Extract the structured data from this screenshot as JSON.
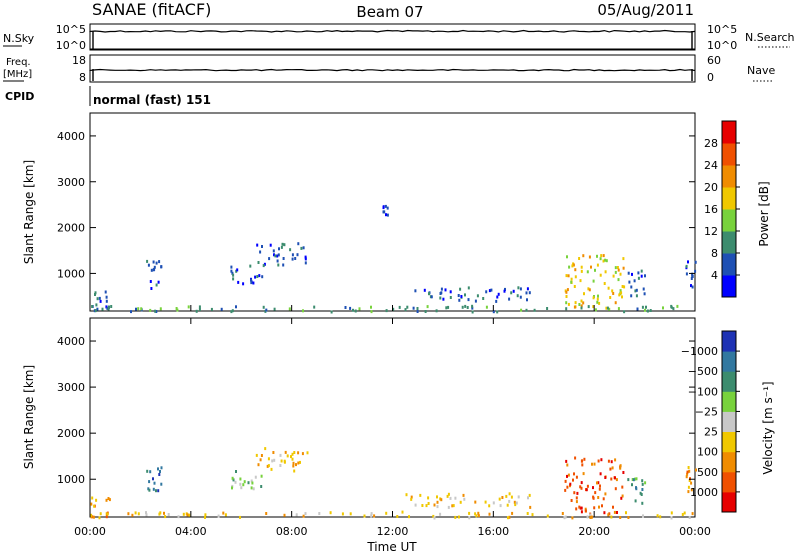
{
  "header": {
    "station": "SANAE (fitACF)",
    "beam": "Beam 07",
    "date": "05/Aug/2011"
  },
  "noise_panel": {
    "left_label": "N.Sky",
    "right_label": "N.Search",
    "left_ticks": [
      "10^5",
      "10^0"
    ],
    "right_ticks": [
      "10^5",
      "10^0"
    ]
  },
  "freq_panel": {
    "left_label_1": "Freq.",
    "left_label_2": "[MHz]",
    "right_label": "Nave",
    "left_ticks": [
      "18",
      "8"
    ],
    "right_ticks": [
      "60",
      "0"
    ]
  },
  "cpid": {
    "label": "CPID",
    "value": "normal (fast) 151"
  },
  "chart_data": [
    {
      "type": "heatmap",
      "panel": "power",
      "ylabel": "Slant Range [km]",
      "colorbar_label": "Power [dB]",
      "colorbar_ticks": [
        "4",
        "8",
        "12",
        "16",
        "20",
        "24",
        "28"
      ],
      "colors": [
        "#0000ff",
        "#1e50b4",
        "#3c8c6e",
        "#78d23c",
        "#f0c800",
        "#f08c00",
        "#f05000",
        "#e60000"
      ],
      "y_ticks": [
        "1000",
        "2000",
        "3000",
        "4000"
      ],
      "ylim_km": [
        180,
        4500
      ],
      "xlim_hours": [
        0,
        24
      ],
      "scatter_regions": [
        {
          "t0": 0.0,
          "t1": 0.8,
          "r0": 200,
          "r1": 650,
          "value_level": 1
        },
        {
          "t0": 2.2,
          "t1": 2.8,
          "r0": 700,
          "r1": 1300,
          "value_level": 1
        },
        {
          "t0": 5.5,
          "t1": 6.8,
          "r0": 800,
          "r1": 1200,
          "value_level": 1
        },
        {
          "t0": 6.5,
          "t1": 8.6,
          "r0": 1200,
          "r1": 1700,
          "value_level": 1
        },
        {
          "t0": 11.6,
          "t1": 11.9,
          "r0": 2300,
          "r1": 2500,
          "value_level": 1
        },
        {
          "t0": 12.5,
          "t1": 17.5,
          "r0": 420,
          "r1": 720,
          "value_level": 1
        },
        {
          "t0": 18.8,
          "t1": 21.2,
          "r0": 250,
          "r1": 1500,
          "value_level": 4
        },
        {
          "t0": 21.3,
          "t1": 22.0,
          "r0": 500,
          "r1": 1100,
          "value_level": 1
        },
        {
          "t0": 23.6,
          "t1": 24.0,
          "r0": 700,
          "r1": 1300,
          "value_level": 1
        },
        {
          "t0": 0.0,
          "t1": 24.0,
          "r0": 190,
          "r1": 320,
          "value_level": 2
        }
      ]
    },
    {
      "type": "heatmap",
      "panel": "velocity",
      "ylabel": "Slant Range [km]",
      "colorbar_label": "Velocity [m s⁻¹]",
      "colorbar_ticks": [
        "1000",
        "500",
        "100",
        "25",
        "−25",
        "−100",
        "−500",
        "−1000"
      ],
      "colors": [
        "#1e32b4",
        "#3278a0",
        "#3c8c6e",
        "#78d23c",
        "#c8c8c8",
        "#f0c800",
        "#f08c00",
        "#f05000",
        "#e60000"
      ],
      "y_ticks": [
        "1000",
        "2000",
        "3000",
        "4000"
      ],
      "ylim_km": [
        180,
        4500
      ],
      "xlim_hours": [
        0,
        24
      ],
      "scatter_regions": [
        {
          "t0": 0.0,
          "t1": 0.8,
          "r0": 200,
          "r1": 650,
          "value_level": 6
        },
        {
          "t0": 2.2,
          "t1": 2.8,
          "r0": 700,
          "r1": 1300,
          "value_level": 1
        },
        {
          "t0": 5.5,
          "t1": 6.8,
          "r0": 800,
          "r1": 1200,
          "value_level": 3
        },
        {
          "t0": 6.5,
          "t1": 8.6,
          "r0": 1200,
          "r1": 1700,
          "value_level": 5
        },
        {
          "t0": 12.5,
          "t1": 17.5,
          "r0": 420,
          "r1": 720,
          "value_level": 5
        },
        {
          "t0": 18.8,
          "t1": 21.2,
          "r0": 250,
          "r1": 1500,
          "value_level": 7
        },
        {
          "t0": 21.3,
          "t1": 22.0,
          "r0": 500,
          "r1": 1100,
          "value_level": 2
        },
        {
          "t0": 23.6,
          "t1": 24.0,
          "r0": 700,
          "r1": 1300,
          "value_level": 6
        },
        {
          "t0": 0.0,
          "t1": 24.0,
          "r0": 190,
          "r1": 320,
          "value_level": 5
        }
      ]
    }
  ],
  "x_axis": {
    "label": "Time UT",
    "ticks": [
      "00:00",
      "04:00",
      "08:00",
      "12:00",
      "16:00",
      "20:00",
      "00:00"
    ]
  }
}
